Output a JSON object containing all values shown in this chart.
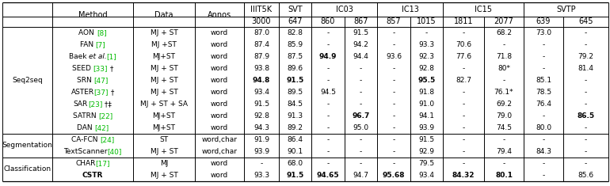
{
  "rows": [
    {
      "group": "Seq2seq",
      "method_parts": [
        [
          "AON ",
          "black"
        ],
        [
          "[8]",
          "green"
        ]
      ],
      "data": "MJ + ST",
      "annos": "word",
      "vals": [
        "87.0",
        "82.8",
        "-",
        "91.5",
        "-",
        "-",
        "-",
        "68.2",
        "73.0",
        "-"
      ],
      "bold": []
    },
    {
      "group": "Seq2seq",
      "method_parts": [
        [
          "FAN ",
          "black"
        ],
        [
          "[7]",
          "green"
        ]
      ],
      "data": "MJ +ST",
      "annos": "word",
      "vals": [
        "87.4",
        "85.9",
        "-",
        "94.2",
        "-",
        "93.3",
        "70.6",
        "-",
        "-",
        "-"
      ],
      "bold": []
    },
    {
      "group": "Seq2seq",
      "method_parts": [
        [
          "Baek ",
          "black"
        ],
        [
          "et al.",
          "italic"
        ],
        [
          "[1]",
          "green"
        ]
      ],
      "data": "MJ+ST",
      "annos": "word",
      "vals": [
        "87.9",
        "87.5",
        "94.9",
        "94.4",
        "93.6",
        "92.3",
        "77.6",
        "71.8",
        "-",
        "79.2"
      ],
      "bold": [
        "94.9"
      ]
    },
    {
      "group": "Seq2seq",
      "method_parts": [
        [
          "SEED ",
          "black"
        ],
        [
          "[33]",
          "green"
        ],
        [
          " †",
          "black"
        ]
      ],
      "data": "MJ + ST",
      "annos": "word",
      "vals": [
        "93.8",
        "89.6",
        "-",
        "-",
        "-",
        "92.8",
        "-",
        "80*",
        "-",
        "81.4"
      ],
      "bold": []
    },
    {
      "group": "Seq2seq",
      "method_parts": [
        [
          "SRN ",
          "black"
        ],
        [
          "[47]",
          "green"
        ]
      ],
      "data": "MJ + ST",
      "annos": "word",
      "vals": [
        "94.8",
        "91.5",
        "-",
        "-",
        "-",
        "95.5",
        "82.7",
        "-",
        "85.1",
        "-"
      ],
      "bold": [
        "94.8",
        "91.5",
        "95.5"
      ]
    },
    {
      "group": "Seq2seq",
      "method_parts": [
        [
          "ASTER",
          "black"
        ],
        [
          "[37]",
          "green"
        ],
        [
          " †",
          "black"
        ]
      ],
      "data": "MJ + ST",
      "annos": "word",
      "vals": [
        "93.4",
        "89.5",
        "94.5",
        "-",
        "-",
        "91.8",
        "-",
        "76.1*",
        "78.5",
        "-"
      ],
      "bold": []
    },
    {
      "group": "Seq2seq",
      "method_parts": [
        [
          "SAR",
          "black"
        ],
        [
          "[23]",
          "green"
        ],
        [
          " †‡",
          "black"
        ]
      ],
      "data": "MJ + ST + SA",
      "annos": "word",
      "vals": [
        "91.5",
        "84.5",
        "-",
        "-",
        "-",
        "91.0",
        "-",
        "69.2",
        "76.4",
        "-"
      ],
      "bold": []
    },
    {
      "group": "Seq2seq",
      "method_parts": [
        [
          "SATRN ",
          "black"
        ],
        [
          "[22]",
          "green"
        ]
      ],
      "data": "MJ+ST",
      "annos": "word",
      "vals": [
        "92.8",
        "91.3",
        "-",
        "96.7",
        "-",
        "94.1",
        "-",
        "79.0",
        "-",
        "86.5"
      ],
      "bold": [
        "96.7",
        "86.5"
      ]
    },
    {
      "group": "Seq2seq",
      "method_parts": [
        [
          "DAN ",
          "black"
        ],
        [
          "[42]",
          "green"
        ]
      ],
      "data": "MJ+ST",
      "annos": "word",
      "vals": [
        "94.3",
        "89.2",
        "-",
        "95.0",
        "-",
        "93.9",
        "-",
        "74.5",
        "80.0",
        "-"
      ],
      "bold": []
    },
    {
      "group": "Segmentation",
      "method_parts": [
        [
          "CA-FCN ",
          "black"
        ],
        [
          "[24]",
          "green"
        ]
      ],
      "data": "ST",
      "annos": "word,char",
      "vals": [
        "91.9",
        "86.4",
        "-",
        "-",
        "-",
        "91.5",
        "-",
        "-",
        "-",
        "-"
      ],
      "bold": []
    },
    {
      "group": "Segmentation",
      "method_parts": [
        [
          "TextScanner",
          "black"
        ],
        [
          "[40]",
          "green"
        ]
      ],
      "data": "MJ + ST",
      "annos": "word,char",
      "vals": [
        "93.9",
        "90.1",
        "-",
        "-",
        "-",
        "92.9",
        "-",
        "79.4",
        "84.3",
        "-"
      ],
      "bold": []
    },
    {
      "group": "Classification",
      "method_parts": [
        [
          "CHAR",
          "black"
        ],
        [
          "[17]",
          "green"
        ]
      ],
      "data": "MJ",
      "annos": "word",
      "vals": [
        "-",
        "68.0",
        "-",
        "-",
        "-",
        "79.5",
        "-",
        "-",
        "-",
        "-"
      ],
      "bold": []
    },
    {
      "group": "Classification",
      "method_parts": [
        [
          "CSTR",
          "bold"
        ]
      ],
      "data": "MJ + ST",
      "annos": "word",
      "vals": [
        "93.3",
        "91.5",
        "94.65",
        "94.7",
        "95.68",
        "93.4",
        "84.32",
        "80.1",
        "-",
        "85.6"
      ],
      "bold": [
        "91.5",
        "94.65",
        "95.68",
        "84.32",
        "80.1"
      ]
    }
  ],
  "green_color": "#00bb00",
  "bg_color": "#ffffff",
  "border_color": "#000000"
}
